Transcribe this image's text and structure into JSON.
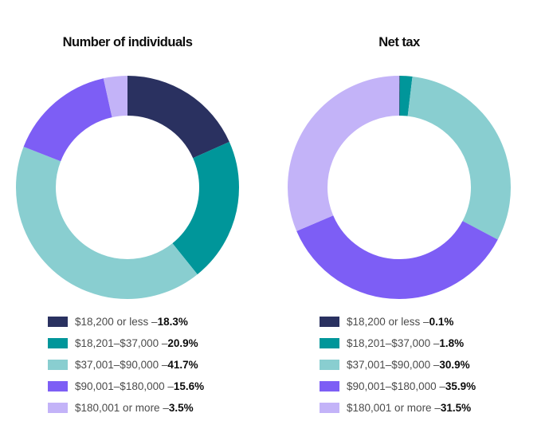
{
  "figure": {
    "background": "#ffffff",
    "title_color": "#0d0d0d",
    "legend_label_color": "#4b4b4b",
    "legend_value_color": "#0b0b0b"
  },
  "chart_data": [
    {
      "type": "pie",
      "subtype": "donut",
      "title": "Number of individuals",
      "categories": [
        "$18,200 or less",
        "$18,201–$37,000",
        "$37,001–$90,000",
        "$90,001–$180,000",
        "$180,001 or more"
      ],
      "values": [
        18.3,
        20.9,
        41.7,
        15.6,
        3.5
      ],
      "unit": "%",
      "colors": [
        "#2a3160",
        "#00969a",
        "#89ced0",
        "#7d5ef5",
        "#c3b3f8"
      ],
      "start_angle_deg": 0,
      "direction": "clockwise",
      "inner_radius_ratio": 0.64,
      "legend_position": "bottom",
      "legend_entries": [
        {
          "label": "$18,200 or less",
          "separator": " – ",
          "value_text": "18.3%"
        },
        {
          "label": "$18,201–$37,000",
          "separator": " – ",
          "value_text": "20.9%"
        },
        {
          "label": "$37,001–$90,000",
          "separator": " – ",
          "value_text": "41.7%"
        },
        {
          "label": "$90,001–$180,000",
          "separator": " – ",
          "value_text": "15.6%"
        },
        {
          "label": "$180,001 or more",
          "separator": " – ",
          "value_text": "3.5%"
        }
      ]
    },
    {
      "type": "pie",
      "subtype": "donut",
      "title": "Net tax",
      "categories": [
        "$18,200 or less",
        "$18,201–$37,000",
        "$37,001–$90,000",
        "$90,001–$180,000",
        "$180,001 or more"
      ],
      "values": [
        0.1,
        1.8,
        30.9,
        35.9,
        31.5
      ],
      "unit": "%",
      "colors": [
        "#2a3160",
        "#00969a",
        "#89ced0",
        "#7d5ef5",
        "#c3b3f8"
      ],
      "start_angle_deg": 0,
      "direction": "clockwise",
      "inner_radius_ratio": 0.64,
      "legend_position": "bottom",
      "legend_entries": [
        {
          "label": "$18,200 or less",
          "separator": " – ",
          "value_text": "0.1%"
        },
        {
          "label": "$18,201–$37,000",
          "separator": " – ",
          "value_text": "1.8%"
        },
        {
          "label": "$37,001–$90,000",
          "separator": " – ",
          "value_text": "30.9%"
        },
        {
          "label": "$90,001–$180,000",
          "separator": " – ",
          "value_text": "35.9%"
        },
        {
          "label": "$180,001 or more",
          "separator": " – ",
          "value_text": "31.5%"
        }
      ]
    }
  ]
}
